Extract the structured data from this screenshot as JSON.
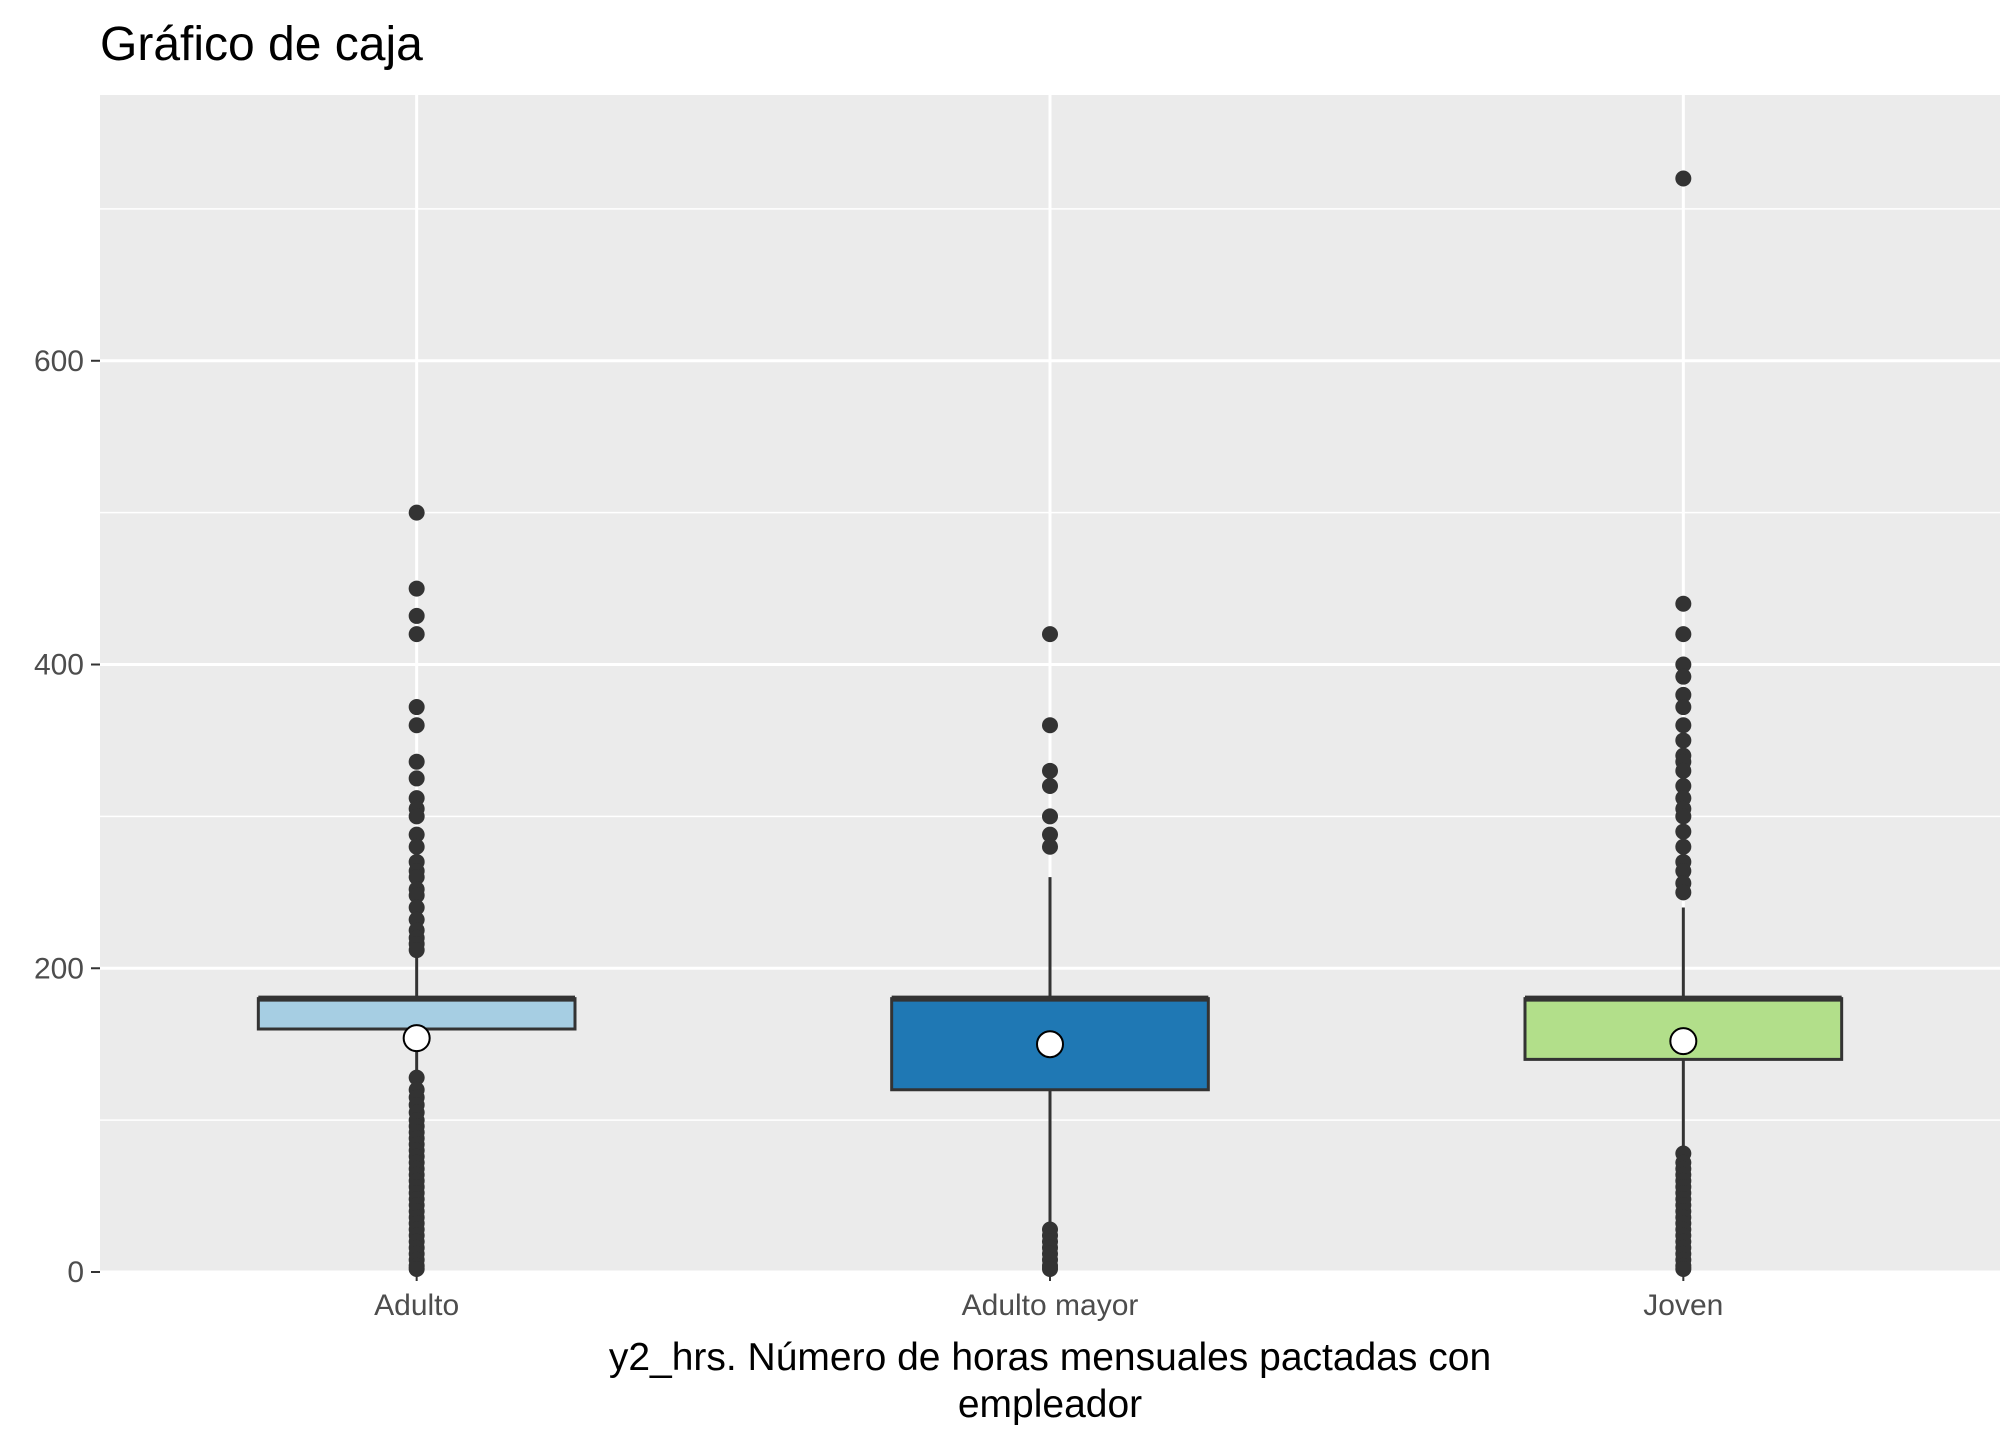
{
  "chart_data": {
    "type": "boxplot",
    "title": "Gráfico de caja",
    "xlabel": [
      "y2_hrs. Número de horas mensuales pactadas con",
      "empleador"
    ],
    "ylabel": "",
    "ylim": [
      0,
      775
    ],
    "yticks": [
      0,
      200,
      400,
      600
    ],
    "grid": true,
    "categories": [
      "Adulto",
      "Adulto mayor",
      "Joven"
    ],
    "series": [
      {
        "category": "Adulto",
        "color": "#a6cee3",
        "q1": 160,
        "median": 180,
        "q3": 180,
        "whisker_low": 130,
        "whisker_high": 210,
        "mean": 154,
        "outliers_high": [
          500,
          450,
          432,
          420,
          372,
          360,
          336,
          325,
          312,
          305,
          300,
          288,
          280,
          270,
          264,
          260,
          252,
          248,
          240,
          232,
          225,
          220,
          216,
          212
        ],
        "outliers_low": [
          128,
          120,
          115,
          110,
          105,
          100,
          96,
          92,
          88,
          84,
          80,
          76,
          72,
          68,
          64,
          60,
          56,
          52,
          48,
          44,
          40,
          36,
          32,
          28,
          24,
          20,
          16,
          12,
          8,
          4,
          2
        ]
      },
      {
        "category": "Adulto mayor",
        "color": "#1f78b4",
        "q1": 120,
        "median": 180,
        "q3": 180,
        "whisker_low": 30,
        "whisker_high": 260,
        "mean": 150,
        "outliers_high": [
          420,
          360,
          330,
          320,
          300,
          288,
          280
        ],
        "outliers_low": [
          28,
          24,
          20,
          16,
          12,
          8,
          4,
          2
        ]
      },
      {
        "category": "Joven",
        "color": "#b2df8a",
        "q1": 140,
        "median": 180,
        "q3": 180,
        "whisker_low": 80,
        "whisker_high": 240,
        "mean": 152,
        "outliers_high": [
          720,
          440,
          420,
          400,
          392,
          380,
          372,
          360,
          350,
          340,
          336,
          330,
          320,
          312,
          305,
          300,
          290,
          280,
          270,
          264,
          256,
          250
        ],
        "outliers_low": [
          78,
          72,
          68,
          64,
          60,
          56,
          52,
          48,
          44,
          40,
          36,
          32,
          28,
          24,
          20,
          16,
          12,
          8,
          4,
          2
        ]
      }
    ]
  }
}
